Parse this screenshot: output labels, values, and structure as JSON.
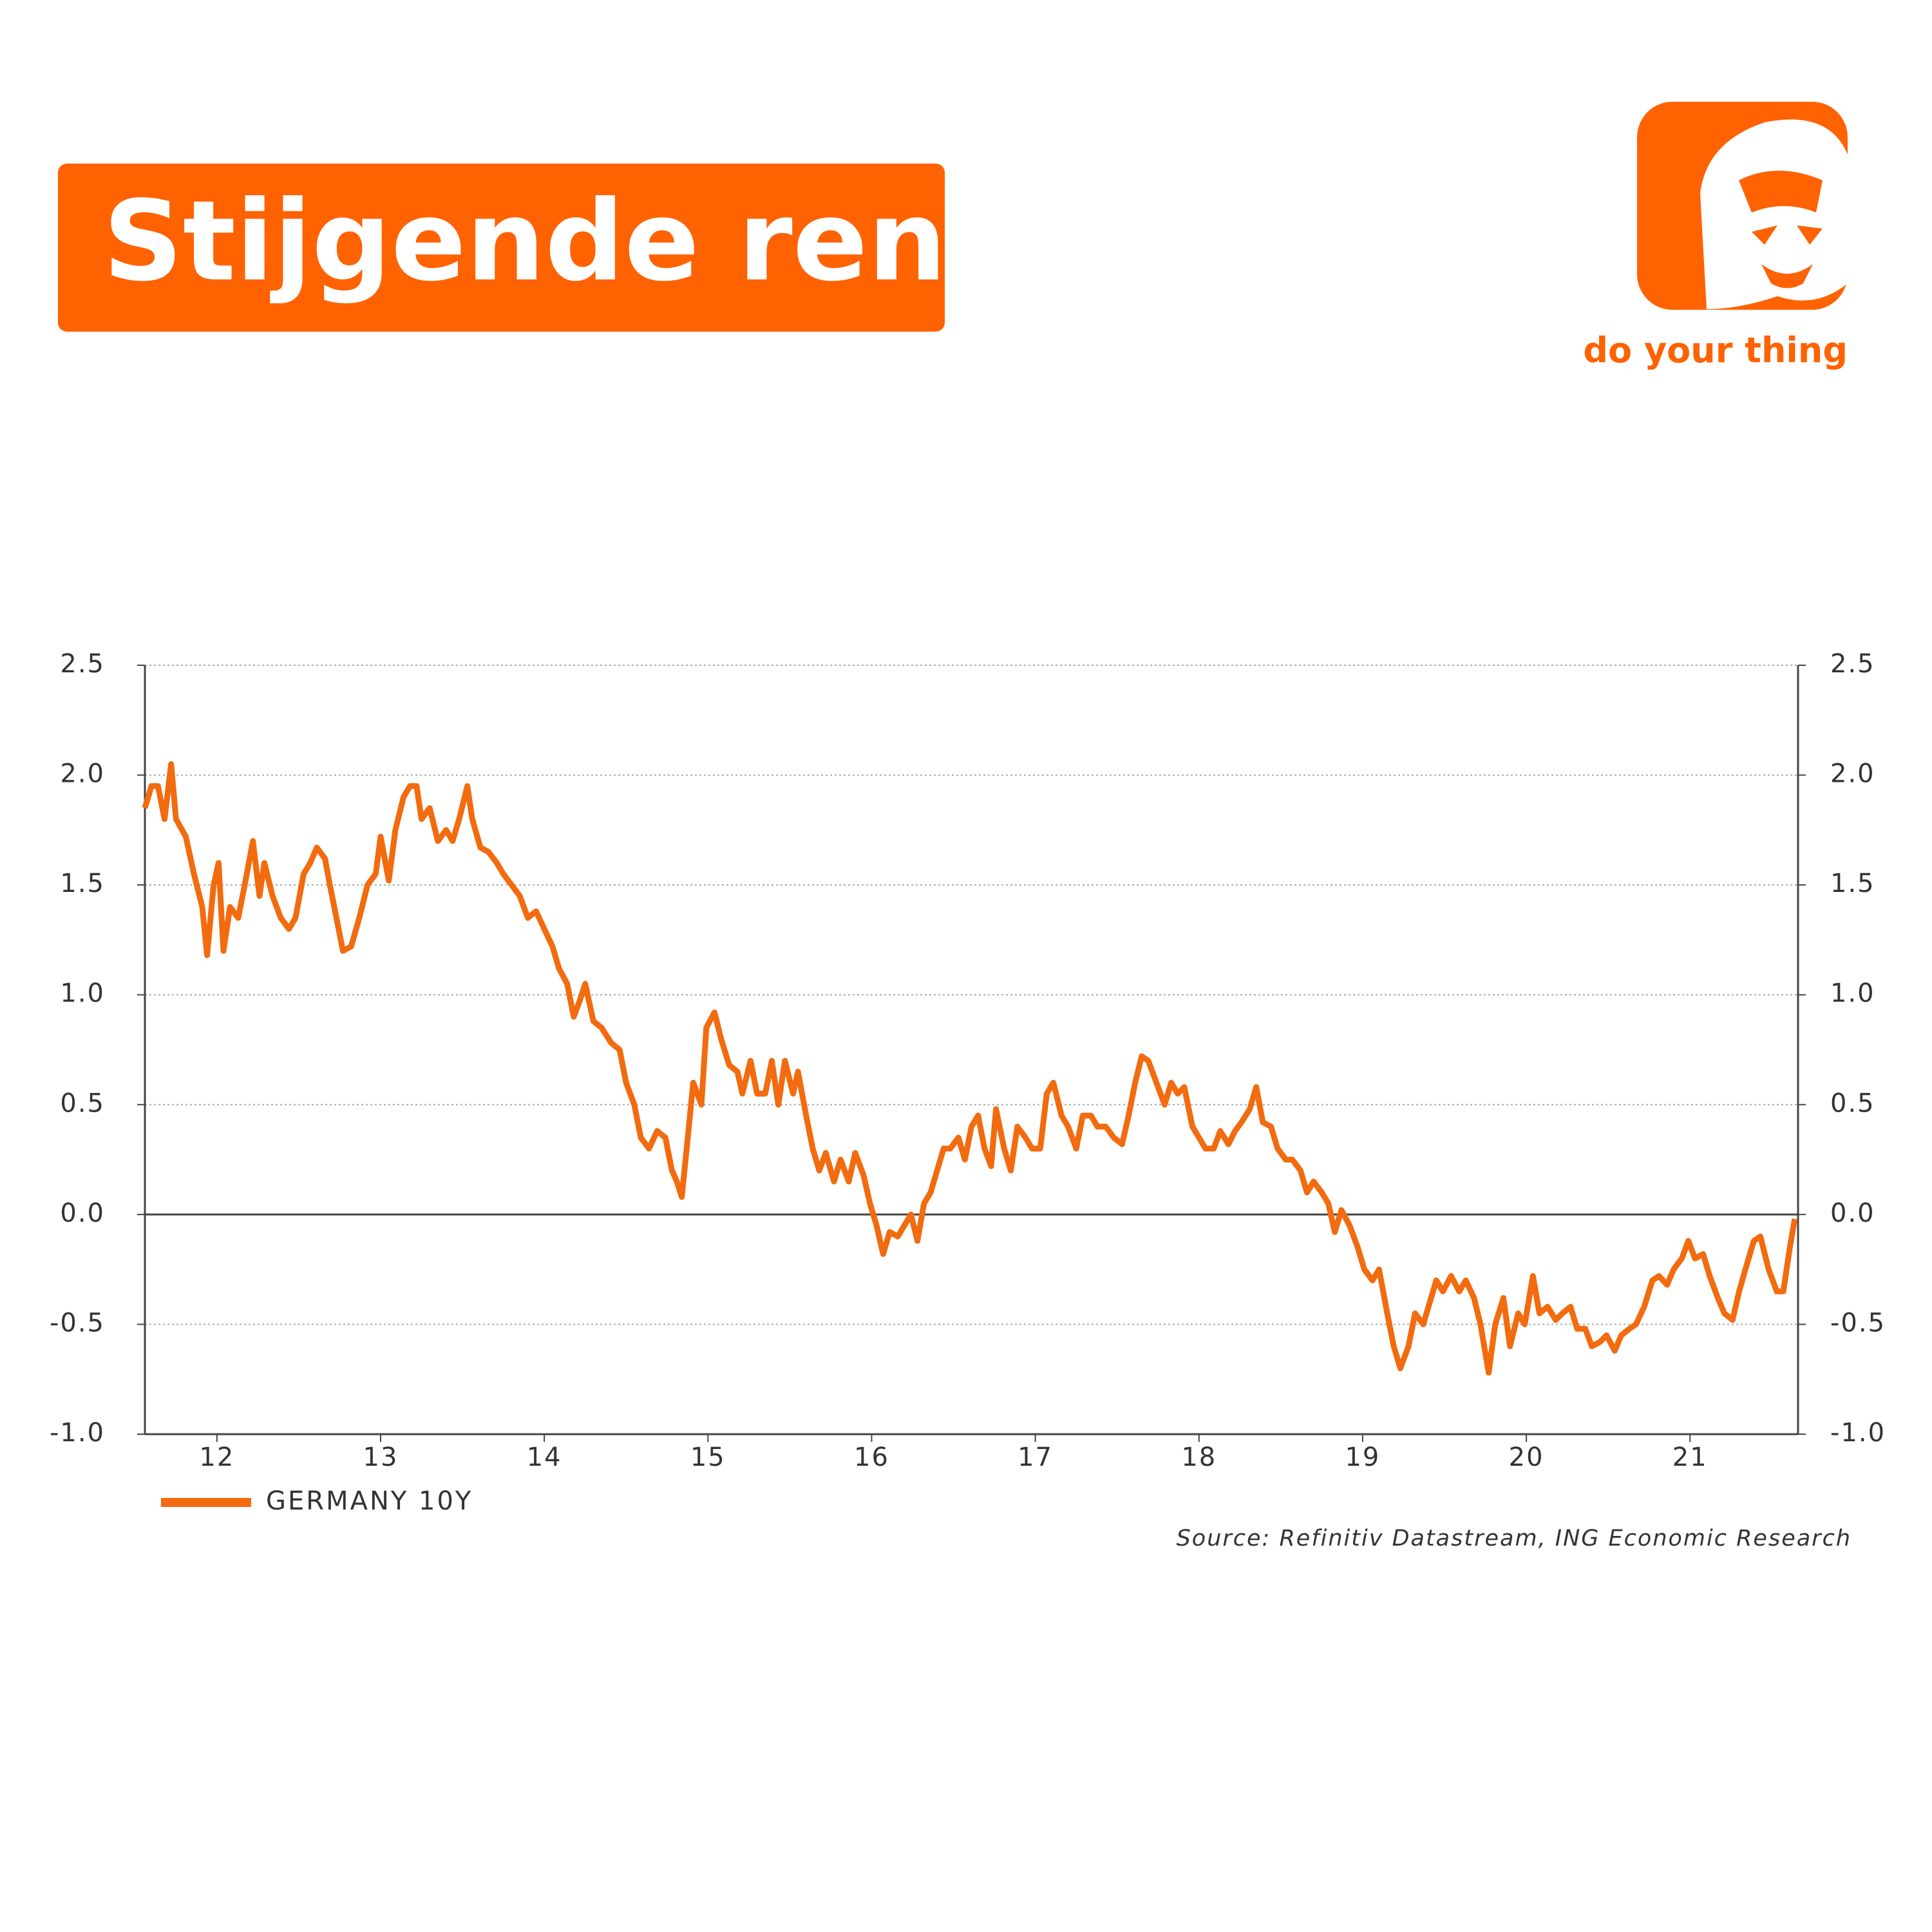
{
  "brand": {
    "tagline": "do your thing"
  },
  "chart_data": {
    "type": "line",
    "title": "Stijgende rentes",
    "source": "Source: Refinitiv Datastream, ING Economic Research",
    "xlim": [
      12.0,
      22.1
    ],
    "xticks": [
      {
        "value": 12.44,
        "label": "12"
      },
      {
        "value": 13.44,
        "label": "13"
      },
      {
        "value": 14.44,
        "label": "14"
      },
      {
        "value": 15.44,
        "label": "15"
      },
      {
        "value": 16.44,
        "label": "16"
      },
      {
        "value": 17.44,
        "label": "17"
      },
      {
        "value": 18.44,
        "label": "18"
      },
      {
        "value": 19.44,
        "label": "19"
      },
      {
        "value": 20.44,
        "label": "20"
      },
      {
        "value": 21.44,
        "label": "21"
      }
    ],
    "ylim": [
      -1.0,
      2.5
    ],
    "yticks": [
      {
        "value": -1,
        "label": "-1.0"
      },
      -0.5,
      {
        "value": 0,
        "label": "0.0"
      },
      0.5,
      {
        "value": 1,
        "label": "1.0"
      },
      1.5,
      {
        "value": 2,
        "label": "2.0"
      },
      2.5
    ],
    "grid": true,
    "x": [
      12.0,
      12.04,
      12.08,
      12.12,
      12.16,
      12.19,
      12.25,
      12.3,
      12.35,
      12.38,
      12.42,
      12.45,
      12.48,
      12.52,
      12.57,
      12.61,
      12.66,
      12.7,
      12.73,
      12.78,
      12.83,
      12.88,
      12.92,
      12.97,
      13.01,
      13.05,
      13.1,
      13.13,
      13.17,
      13.21,
      13.26,
      13.31,
      13.36,
      13.41,
      13.44,
      13.49,
      13.53,
      13.58,
      13.62,
      13.66,
      13.69,
      13.74,
      13.79,
      13.84,
      13.88,
      13.92,
      13.97,
      14.0,
      14.05,
      14.1,
      14.15,
      14.19,
      14.24,
      14.29,
      14.34,
      14.39,
      14.44,
      14.49,
      14.53,
      14.58,
      14.62,
      14.66,
      14.69,
      14.74,
      14.79,
      14.85,
      14.9,
      14.94,
      14.99,
      15.03,
      15.08,
      15.13,
      15.18,
      15.22,
      15.25,
      15.28,
      15.31,
      15.35,
      15.4,
      15.43,
      15.48,
      15.52,
      15.57,
      15.62,
      15.65,
      15.7,
      15.74,
      15.79,
      15.83,
      15.87,
      15.91,
      15.96,
      15.99,
      16.04,
      16.08,
      16.12,
      16.16,
      16.21,
      16.25,
      16.3,
      16.34,
      16.39,
      16.43,
      16.47,
      16.51,
      16.55,
      16.6,
      16.64,
      16.68,
      16.72,
      16.76,
      16.8,
      16.84,
      16.88,
      16.92,
      16.97,
      17.01,
      17.05,
      17.09,
      17.13,
      17.17,
      17.2,
      17.25,
      17.29,
      17.33,
      17.38,
      17.42,
      17.47,
      17.51,
      17.55,
      17.6,
      17.64,
      17.69,
      17.73,
      17.78,
      17.82,
      17.87,
      17.92,
      17.97,
      18.01,
      18.05,
      18.09,
      18.13,
      18.18,
      18.23,
      18.27,
      18.31,
      18.35,
      18.4,
      18.44,
      18.48,
      18.53,
      18.57,
      18.62,
      18.66,
      18.7,
      18.75,
      18.79,
      18.83,
      18.88,
      18.92,
      18.97,
      19.01,
      19.06,
      19.1,
      19.14,
      19.19,
      19.23,
      19.27,
      19.31,
      19.36,
      19.41,
      19.45,
      19.5,
      19.54,
      19.59,
      19.63,
      19.67,
      19.72,
      19.76,
      19.81,
      19.85,
      19.89,
      19.93,
      19.98,
      20.03,
      20.07,
      20.12,
      20.16,
      20.21,
      20.25,
      20.3,
      20.34,
      20.39,
      20.43,
      20.48,
      20.52,
      20.57,
      20.62,
      20.66,
      20.71,
      20.75,
      20.8,
      20.84,
      20.89,
      20.93,
      20.98,
      21.02,
      21.07,
      21.11,
      21.16,
      21.21,
      21.25,
      21.3,
      21.34,
      21.39,
      21.43,
      21.47,
      21.52,
      21.56,
      21.61,
      21.65,
      21.7,
      21.74,
      21.79,
      21.83,
      21.87,
      21.92,
      21.97,
      22.01,
      22.05,
      22.08
    ],
    "series": [
      {
        "name": "GERMANY 10Y",
        "color": "#f26b0f",
        "values": [
          1.85,
          1.95,
          1.95,
          1.8,
          2.05,
          1.8,
          1.72,
          1.55,
          1.4,
          1.18,
          1.5,
          1.6,
          1.2,
          1.4,
          1.35,
          1.5,
          1.7,
          1.45,
          1.6,
          1.45,
          1.35,
          1.3,
          1.35,
          1.55,
          1.6,
          1.67,
          1.62,
          1.5,
          1.35,
          1.2,
          1.22,
          1.35,
          1.5,
          1.55,
          1.72,
          1.52,
          1.75,
          1.9,
          1.95,
          1.95,
          1.8,
          1.85,
          1.7,
          1.75,
          1.7,
          1.8,
          1.95,
          1.8,
          1.67,
          1.65,
          1.6,
          1.55,
          1.5,
          1.45,
          1.35,
          1.38,
          1.3,
          1.22,
          1.12,
          1.05,
          0.9,
          0.98,
          1.05,
          0.88,
          0.85,
          0.78,
          0.75,
          0.6,
          0.5,
          0.35,
          0.3,
          0.38,
          0.35,
          0.2,
          0.15,
          0.08,
          0.3,
          0.6,
          0.5,
          0.85,
          0.92,
          0.8,
          0.68,
          0.65,
          0.55,
          0.7,
          0.55,
          0.55,
          0.7,
          0.5,
          0.7,
          0.55,
          0.65,
          0.45,
          0.3,
          0.2,
          0.28,
          0.15,
          0.25,
          0.15,
          0.28,
          0.18,
          0.05,
          -0.05,
          -0.18,
          -0.08,
          -0.1,
          -0.05,
          0.0,
          -0.12,
          0.05,
          0.1,
          0.2,
          0.3,
          0.3,
          0.35,
          0.25,
          0.4,
          0.45,
          0.3,
          0.22,
          0.48,
          0.3,
          0.2,
          0.4,
          0.35,
          0.3,
          0.3,
          0.55,
          0.6,
          0.45,
          0.4,
          0.3,
          0.45,
          0.45,
          0.4,
          0.4,
          0.35,
          0.32,
          0.45,
          0.6,
          0.72,
          0.7,
          0.6,
          0.5,
          0.6,
          0.55,
          0.58,
          0.4,
          0.35,
          0.3,
          0.3,
          0.38,
          0.32,
          0.38,
          0.42,
          0.48,
          0.58,
          0.42,
          0.4,
          0.3,
          0.25,
          0.25,
          0.2,
          0.1,
          0.15,
          0.1,
          0.05,
          -0.08,
          0.02,
          -0.05,
          -0.15,
          -0.25,
          -0.3,
          -0.25,
          -0.45,
          -0.6,
          -0.7,
          -0.6,
          -0.45,
          -0.5,
          -0.4,
          -0.3,
          -0.35,
          -0.28,
          -0.35,
          -0.3,
          -0.38,
          -0.5,
          -0.72,
          -0.5,
          -0.38,
          -0.6,
          -0.45,
          -0.5,
          -0.28,
          -0.45,
          -0.42,
          -0.48,
          -0.45,
          -0.42,
          -0.52,
          -0.52,
          -0.6,
          -0.58,
          -0.55,
          -0.62,
          -0.55,
          -0.52,
          -0.5,
          -0.42,
          -0.3,
          -0.28,
          -0.32,
          -0.25,
          -0.2,
          -0.12,
          -0.2,
          -0.18,
          -0.28,
          -0.38,
          -0.45,
          -0.48,
          -0.35,
          -0.22,
          -0.12,
          -0.1,
          -0.25,
          -0.35,
          -0.35,
          -0.15,
          -0.02
        ]
      }
    ]
  }
}
